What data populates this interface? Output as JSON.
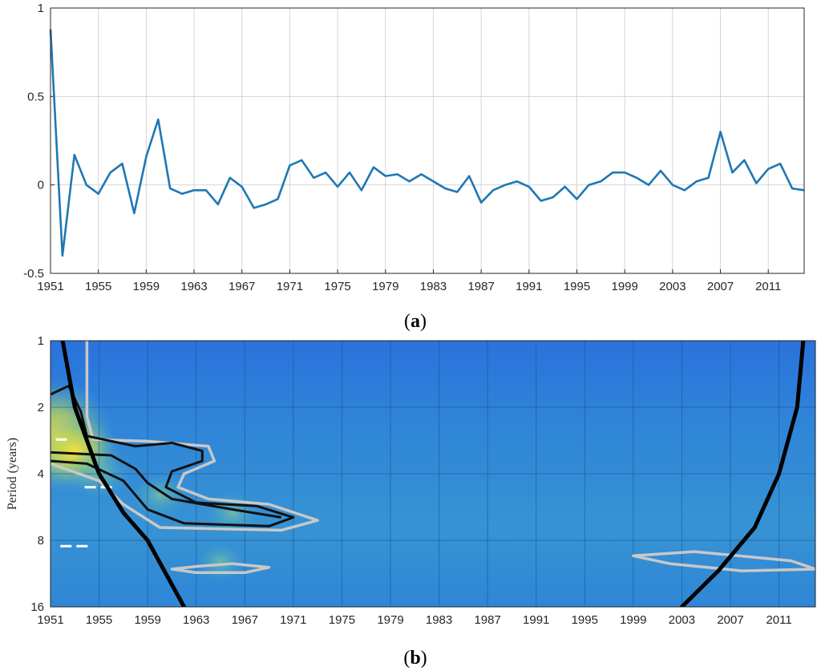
{
  "colors": {
    "series": "#1f77b4",
    "grid": "#d4d4d4",
    "axis": "#262626",
    "wavelet_low": "#2b72d8",
    "wavelet_mid": "#3fa6d0",
    "wavelet_high": "#f7d23a",
    "coi": "#000000",
    "significance": "#c8c8c8"
  },
  "chart_data": [
    {
      "type": "line",
      "panel_label": "a",
      "xlim": [
        1951,
        2014
      ],
      "ylim": [
        -0.5,
        1
      ],
      "x_ticks": [
        "1951",
        "1955",
        "1959",
        "1963",
        "1967",
        "1971",
        "1975",
        "1979",
        "1983",
        "1987",
        "1991",
        "1995",
        "1999",
        "2003",
        "2007",
        "2011"
      ],
      "y_ticks": [
        "-0.5",
        "0",
        "0.5",
        "1"
      ],
      "grid": true,
      "x": [
        1951,
        1952,
        1953,
        1954,
        1955,
        1956,
        1957,
        1958,
        1959,
        1960,
        1961,
        1962,
        1963,
        1964,
        1965,
        1966,
        1967,
        1968,
        1969,
        1970,
        1971,
        1972,
        1973,
        1974,
        1975,
        1976,
        1977,
        1978,
        1979,
        1980,
        1981,
        1982,
        1983,
        1984,
        1985,
        1986,
        1987,
        1988,
        1989,
        1990,
        1991,
        1992,
        1993,
        1994,
        1995,
        1996,
        1997,
        1998,
        1999,
        2000,
        2001,
        2002,
        2003,
        2004,
        2005,
        2006,
        2007,
        2008,
        2009,
        2010,
        2011,
        2012,
        2013,
        2014
      ],
      "y": [
        0.88,
        -0.4,
        0.17,
        0.0,
        -0.05,
        0.07,
        0.12,
        -0.16,
        0.16,
        0.37,
        -0.02,
        -0.05,
        -0.03,
        -0.03,
        -0.11,
        0.04,
        -0.01,
        -0.13,
        -0.11,
        -0.08,
        0.11,
        0.14,
        0.04,
        0.07,
        -0.01,
        0.07,
        -0.03,
        0.1,
        0.05,
        0.06,
        0.02,
        0.06,
        0.02,
        -0.02,
        -0.04,
        0.05,
        -0.1,
        -0.03,
        0.0,
        0.02,
        -0.01,
        -0.09,
        -0.07,
        -0.01,
        -0.08,
        0.0,
        0.02,
        0.07,
        0.07,
        0.04,
        0.0,
        0.08,
        0.0,
        -0.03,
        0.02,
        0.04,
        0.3,
        0.07,
        0.14,
        0.01,
        0.09,
        0.12,
        -0.02,
        -0.03
      ]
    },
    {
      "type": "heatmap",
      "panel_label": "b",
      "ylabel": "Period (years)",
      "xlim": [
        1951,
        2014
      ],
      "x_ticks": [
        "1951",
        "1955",
        "1959",
        "1963",
        "1967",
        "1971",
        "1975",
        "1979",
        "1983",
        "1987",
        "1991",
        "1995",
        "1999",
        "2003",
        "2007",
        "2011"
      ],
      "y_ticks": [
        "1",
        "2",
        "4",
        "8",
        "16"
      ],
      "y_scale": "log2",
      "ylim": [
        1,
        16
      ],
      "y_reversed": true,
      "grid": true,
      "hotspots": [
        {
          "year": 1951.5,
          "period": 2.7,
          "level": 1.0
        },
        {
          "year": 1953,
          "period": 3.2,
          "level": 0.75
        },
        {
          "year": 1955,
          "period": 4.0,
          "level": 0.45
        },
        {
          "year": 1960,
          "period": 5.0,
          "level": 0.35
        },
        {
          "year": 1966,
          "period": 6.0,
          "level": 0.3
        },
        {
          "year": 1965,
          "period": 10,
          "level": 0.25
        }
      ],
      "cone_of_influence_left": [
        [
          1952,
          1
        ],
        [
          1953,
          2
        ],
        [
          1955,
          4
        ],
        [
          1957,
          6
        ],
        [
          1959,
          8
        ],
        [
          1962,
          16
        ]
      ],
      "cone_of_influence_right": [
        [
          2013,
          1
        ],
        [
          2012.5,
          2
        ],
        [
          2011,
          4
        ],
        [
          2009,
          7
        ],
        [
          2006,
          11
        ],
        [
          2003,
          16
        ]
      ],
      "significance_black": [
        [
          [
            1951,
            1.75
          ],
          [
            1952.5,
            1.6
          ],
          [
            1953.5,
            2.1
          ],
          [
            1954,
            2.7
          ],
          [
            1958,
            3.0
          ],
          [
            1961,
            2.9
          ],
          [
            1963.5,
            3.15
          ],
          [
            1963.5,
            3.5
          ],
          [
            1961,
            3.9
          ],
          [
            1960.5,
            4.6
          ],
          [
            1963,
            5.4
          ],
          [
            1968,
            5.6
          ],
          [
            1971,
            6.3
          ],
          [
            1969,
            6.9
          ],
          [
            1962,
            6.7
          ],
          [
            1959,
            5.8
          ],
          [
            1957,
            4.3
          ],
          [
            1954,
            3.6
          ],
          [
            1951,
            3.5
          ]
        ],
        [
          [
            1951,
            3.2
          ],
          [
            1956,
            3.3
          ],
          [
            1958,
            3.8
          ],
          [
            1959,
            4.4
          ],
          [
            1961,
            5.2
          ],
          [
            1966,
            5.8
          ],
          [
            1970,
            6.3
          ]
        ]
      ],
      "significance_gray": [
        [
          [
            1954,
            1
          ],
          [
            1954,
            2.2
          ],
          [
            1954.5,
            2.8
          ],
          [
            1959,
            2.85
          ],
          [
            1964,
            3.0
          ],
          [
            1964.5,
            3.5
          ],
          [
            1962,
            4.0
          ],
          [
            1961.5,
            4.6
          ],
          [
            1964,
            5.2
          ],
          [
            1969,
            5.5
          ],
          [
            1973,
            6.5
          ],
          [
            1970,
            7.2
          ],
          [
            1960,
            7.0
          ],
          [
            1957,
            5.5
          ],
          [
            1955,
            4.3
          ],
          [
            1951,
            3.6
          ]
        ],
        [
          [
            1963,
            10.5
          ],
          [
            1966,
            10.2
          ],
          [
            1969,
            10.6
          ],
          [
            1967,
            11.2
          ],
          [
            1963,
            11.2
          ],
          [
            1961,
            10.8
          ]
        ],
        [
          [
            1999,
            9.4
          ],
          [
            2004,
            9.0
          ],
          [
            2012,
            9.9
          ],
          [
            2014,
            10.8
          ],
          [
            2008,
            11.0
          ],
          [
            2002,
            10.2
          ]
        ]
      ],
      "dashes": [
        [
          1951.3,
          2.8
        ],
        [
          1955,
          4.6
        ],
        [
          1953,
          8.5
        ]
      ]
    }
  ]
}
